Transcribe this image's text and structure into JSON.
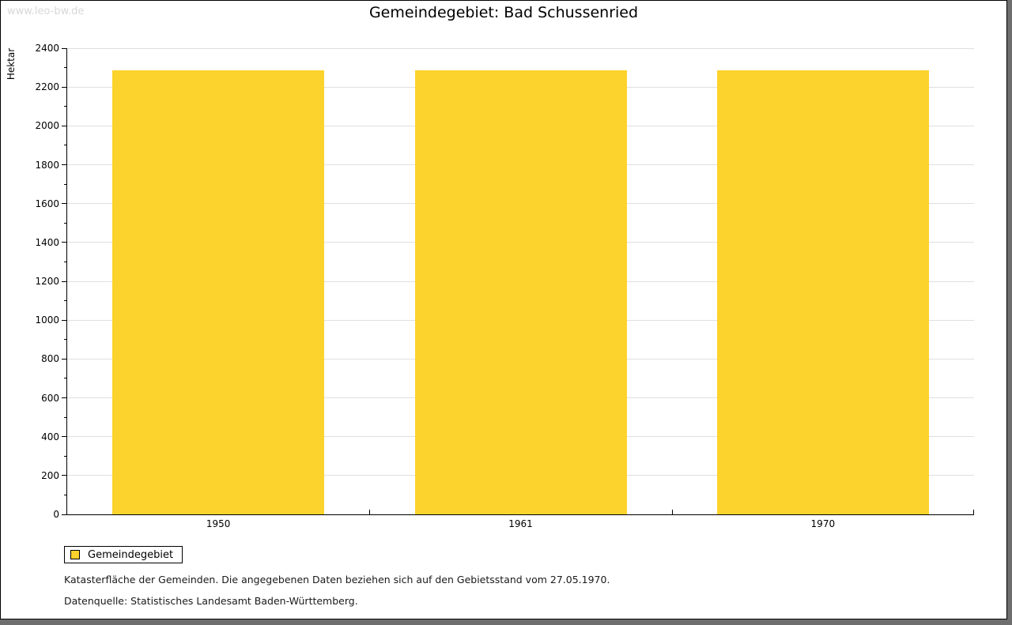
{
  "watermark": "www.leo-bw.de",
  "header": {
    "title": "Gemeindegebiet: Bad Schussenried"
  },
  "chart_data": {
    "type": "bar",
    "title": "Gemeindegebiet: Bad Schussenried",
    "categories": [
      "1950",
      "1961",
      "1970"
    ],
    "series": [
      {
        "name": "Gemeindegebiet",
        "values": [
          2288,
          2288,
          2288
        ]
      }
    ],
    "xlabel": "",
    "ylabel": "Hektar",
    "ylim": [
      0,
      2400
    ],
    "ytick_step": 200,
    "yminor_step": 100,
    "grid": true,
    "legend_position": "bottom-left",
    "bar_color": "#fcd32c"
  },
  "legend": {
    "items": [
      {
        "label": "Gemeindegebiet",
        "color": "#fcd32c"
      }
    ]
  },
  "footnotes": {
    "line1": "Katasterfläche der Gemeinden. Die angegebenen Daten beziehen sich auf den Gebietsstand vom 27.05.1970.",
    "line2": "Datenquelle: Statistisches Landesamt Baden-Württemberg."
  },
  "colors": {
    "bar": "#fcd32c",
    "grid": "#e0e0e0",
    "axis": "#000000",
    "watermark": "#d8d8d8",
    "frame_shadow": "#6e6e6e",
    "background": "#ffffff"
  }
}
